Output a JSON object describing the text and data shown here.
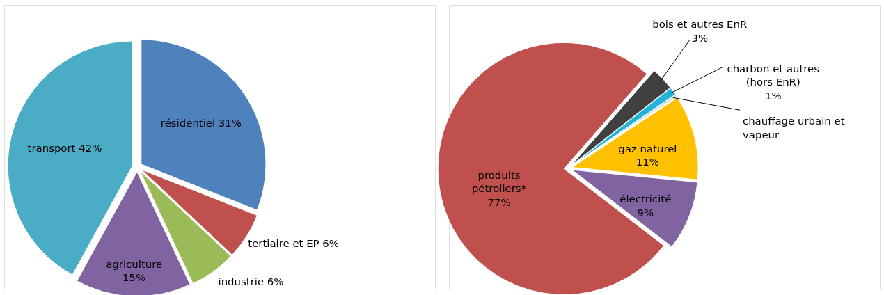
{
  "chart_data": [
    {
      "type": "pie",
      "categories": [
        "résidentiel",
        "tertiaire et EP",
        "industrie",
        "agriculture",
        "transport"
      ],
      "values": [
        31,
        6,
        6,
        15,
        42
      ],
      "value_labels": [
        "31%",
        "6%",
        "6%",
        "15%",
        "42%"
      ],
      "colors": [
        "#4f81bd",
        "#c0504d",
        "#9bbb59",
        "#8064a2",
        "#4bacc6"
      ]
    },
    {
      "type": "pie",
      "categories": [
        "bois et autres EnR",
        "charbon et autres (hors EnR)",
        "chauffage urbain et vapeur",
        "gaz naturel",
        "électricité",
        "produits pétroliers*"
      ],
      "values": [
        3,
        1,
        0.3,
        11,
        9,
        77
      ],
      "value_labels": [
        "3%",
        "1%",
        null,
        "11%",
        "9%",
        "77%"
      ],
      "colors": [
        "#404040",
        "#1fb4d8",
        "#d9d9d9",
        "#ffc000",
        "#8064a2",
        "#c0504d"
      ]
    }
  ]
}
